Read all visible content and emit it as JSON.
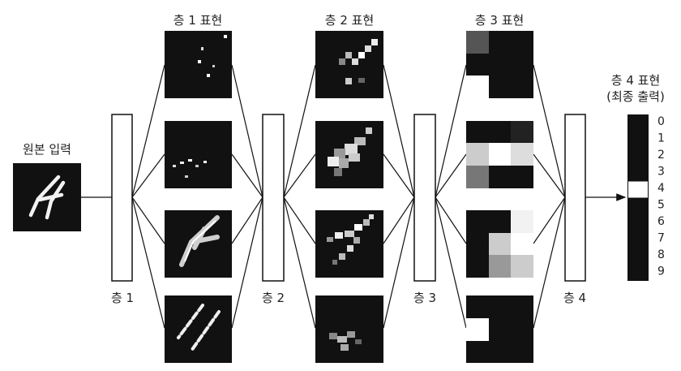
{
  "labels": {
    "input": "원본 입력",
    "layer1_repr": "층 1 표현",
    "layer2_repr": "층 2 표현",
    "layer3_repr": "층 3 표현",
    "layer4_repr_line1": "층 4 표현",
    "layer4_repr_line2": "(최종 출력)",
    "layer1": "층 1",
    "layer2": "층 2",
    "layer3": "층 3",
    "layer4": "층 4"
  },
  "output_digits": [
    "0",
    "1",
    "2",
    "3",
    "4",
    "5",
    "6",
    "7",
    "8",
    "9"
  ],
  "active_digit": "4"
}
